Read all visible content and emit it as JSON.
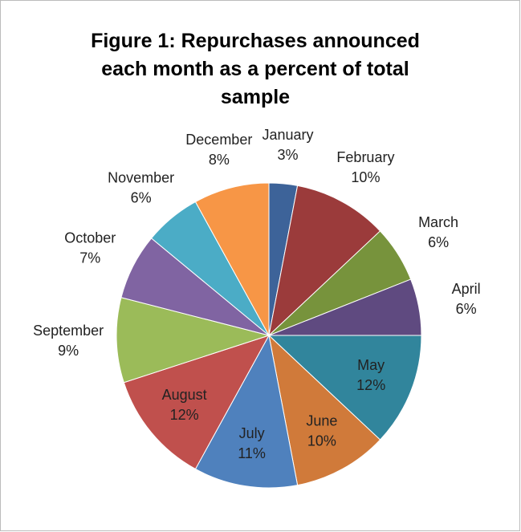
{
  "chart_data": {
    "type": "pie",
    "title": "Figure 1: Repurchases announced each month as a percent of total sample",
    "categories": [
      "January",
      "February",
      "March",
      "April",
      "May",
      "June",
      "July",
      "August",
      "September",
      "October",
      "November",
      "December"
    ],
    "values": [
      3,
      10,
      6,
      6,
      12,
      10,
      11,
      12,
      9,
      7,
      6,
      8
    ],
    "value_labels": [
      "3%",
      "10%",
      "6%",
      "6%",
      "12%",
      "10%",
      "11%",
      "12%",
      "9%",
      "7%",
      "6%",
      "8%"
    ],
    "colors": [
      "#3d6399",
      "#9b3b3b",
      "#77933c",
      "#5f4a80",
      "#31859c",
      "#d07a3a",
      "#4f81bd",
      "#c0504d",
      "#9bbb59",
      "#8064a2",
      "#4bacc6",
      "#f79646"
    ]
  }
}
